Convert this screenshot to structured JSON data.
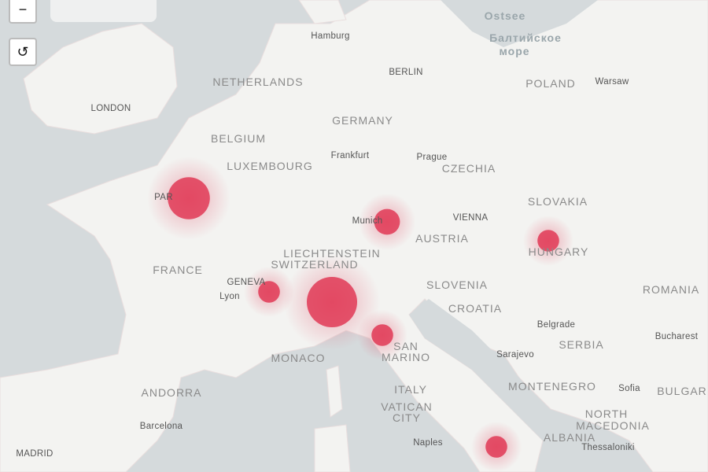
{
  "controls": {
    "zoom_out": "−",
    "reset": "↺"
  },
  "colors": {
    "sea": "#d5dadc",
    "land": "#f3f3f1",
    "heat": "#e0304e",
    "border": "#e7c9cf"
  },
  "labels": {
    "countries": [
      {
        "t": "NETHERLANDS"
      },
      {
        "t": "BELGIUM"
      },
      {
        "t": "LUXEMBOURG"
      },
      {
        "t": "GERMANY"
      },
      {
        "t": "POLAND"
      },
      {
        "t": "CZECHIA"
      },
      {
        "t": "SLOVAKIA"
      },
      {
        "t": "AUSTRIA"
      },
      {
        "t": "HUNGARY"
      },
      {
        "t": "LIECHTENSTEIN"
      },
      {
        "t": "SWITZERLAND"
      },
      {
        "t": "FRANCE"
      },
      {
        "t": "SLOVENIA"
      },
      {
        "t": "CROATIA"
      },
      {
        "t": "ROMANIA"
      },
      {
        "t": "SERBIA"
      },
      {
        "t": "SAN"
      },
      {
        "t": "MARINO"
      },
      {
        "t": "MONACO"
      },
      {
        "t": "ITALY"
      },
      {
        "t": "ANDORRA"
      },
      {
        "t": "VATICAN"
      },
      {
        "t": "CITY"
      },
      {
        "t": "MONTENEGRO"
      },
      {
        "t": "BULGAR"
      },
      {
        "t": "NORTH"
      },
      {
        "t": "MACEDONIA"
      },
      {
        "t": "ALBANIA"
      }
    ],
    "cities": [
      {
        "t": "Hamburg"
      },
      {
        "t": "BERLIN"
      },
      {
        "t": "Warsaw"
      },
      {
        "t": "LONDON"
      },
      {
        "t": "Frankfurt"
      },
      {
        "t": "Prague"
      },
      {
        "t": "VIENNA"
      },
      {
        "t": "Munich"
      },
      {
        "t": "PAR"
      },
      {
        "t": "GENEVA"
      },
      {
        "t": "Lyon"
      },
      {
        "t": "Belgrade"
      },
      {
        "t": "Sarajevo"
      },
      {
        "t": "Bucharest"
      },
      {
        "t": "Sofia"
      },
      {
        "t": "Barcelona"
      },
      {
        "t": "MADRID"
      },
      {
        "t": "Naples"
      },
      {
        "t": "Thessaloniki"
      }
    ],
    "seas": [
      {
        "t": "Ostsee"
      },
      {
        "t": "Балтийское"
      },
      {
        "t": "море"
      }
    ]
  },
  "hotspots": [
    {
      "place": "Paris",
      "intensity": 0.8
    },
    {
      "place": "Munich",
      "intensity": 0.4
    },
    {
      "place": "Budapest",
      "intensity": 0.3
    },
    {
      "place": "Geneva",
      "intensity": 0.3
    },
    {
      "place": "Milan",
      "intensity": 1.0
    },
    {
      "place": "Bologna",
      "intensity": 0.3
    },
    {
      "place": "Southern Italy",
      "intensity": 0.3
    }
  ]
}
